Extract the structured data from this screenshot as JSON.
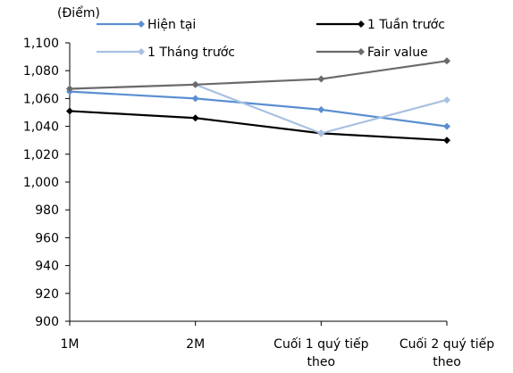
{
  "chart_data": {
    "type": "line",
    "ylabel": "(Điểm)",
    "ylim": [
      900,
      1100
    ],
    "ytick_step": 20,
    "categories": [
      [
        "1M"
      ],
      [
        "2M"
      ],
      [
        "Cuối 1 quý tiếp",
        "theo"
      ],
      [
        "Cuối 2 quý tiếp",
        "theo"
      ]
    ],
    "series": [
      {
        "name": "Hiện tại",
        "color": "#5b8fd1",
        "values": [
          1065,
          1060,
          1052,
          1040
        ]
      },
      {
        "name": "1 Tuần trước",
        "color": "#000000",
        "values": [
          1051,
          1046,
          1035,
          1030
        ]
      },
      {
        "name": "1 Tháng trước",
        "color": "#a9c1e2",
        "values": [
          1067,
          1070,
          1035,
          1059
        ]
      },
      {
        "name": "Fair value",
        "color": "#6a6a6a",
        "values": [
          1067,
          1070,
          1074,
          1087
        ]
      }
    ],
    "legend_position": "top",
    "grid": false
  }
}
